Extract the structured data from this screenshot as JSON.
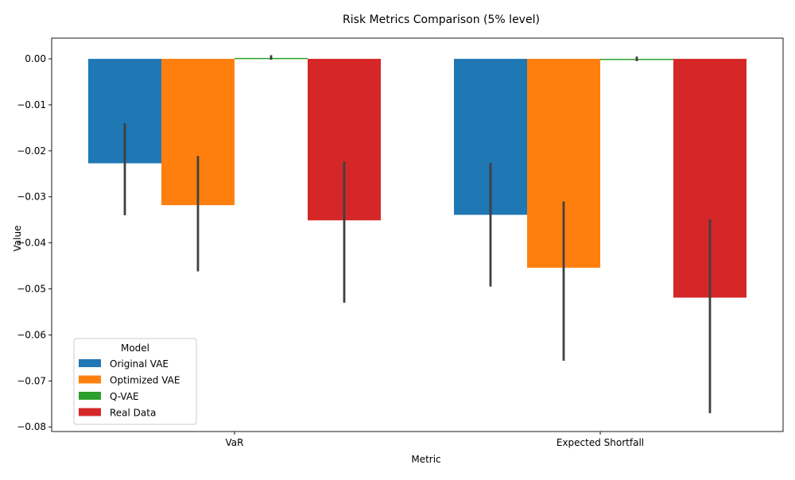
{
  "chart_data": {
    "type": "bar",
    "title": "Risk Metrics Comparison (5% level)",
    "xlabel": "Metric",
    "ylabel": "Value",
    "categories": [
      "VaR",
      "Expected Shortfall"
    ],
    "ylim": [
      -0.081,
      0.0045
    ],
    "yticks": [
      0.0,
      -0.01,
      -0.02,
      -0.03,
      -0.04,
      -0.05,
      -0.06,
      -0.07,
      -0.08
    ],
    "ytick_labels": [
      "0.00",
      "−0.01",
      "−0.02",
      "−0.03",
      "−0.04",
      "−0.05",
      "−0.06",
      "−0.07",
      "−0.08"
    ],
    "legend": {
      "title": "Model",
      "placement": "lower-left"
    },
    "grid": false,
    "series": [
      {
        "name": "Original VAE",
        "color": "#1f77b4",
        "values": [
          -0.0227,
          -0.0339
        ],
        "err_low": [
          -0.034,
          -0.0495
        ],
        "err_high": [
          -0.014,
          -0.0226
        ]
      },
      {
        "name": "Optimized VAE",
        "color": "#ff7f0e",
        "values": [
          -0.0318,
          -0.0454
        ],
        "err_low": [
          -0.0462,
          -0.0656
        ],
        "err_high": [
          -0.0211,
          -0.031
        ]
      },
      {
        "name": "Q-VAE",
        "color": "#2ca02c",
        "values": [
          0.0002,
          0.0
        ],
        "err_low": [
          -0.0002,
          -0.0005
        ],
        "err_high": [
          0.0008,
          0.0005
        ]
      },
      {
        "name": "Real Data",
        "color": "#d62728",
        "values": [
          -0.0351,
          -0.0519
        ],
        "err_low": [
          -0.053,
          -0.077
        ],
        "err_high": [
          -0.0223,
          -0.0349
        ]
      }
    ]
  }
}
